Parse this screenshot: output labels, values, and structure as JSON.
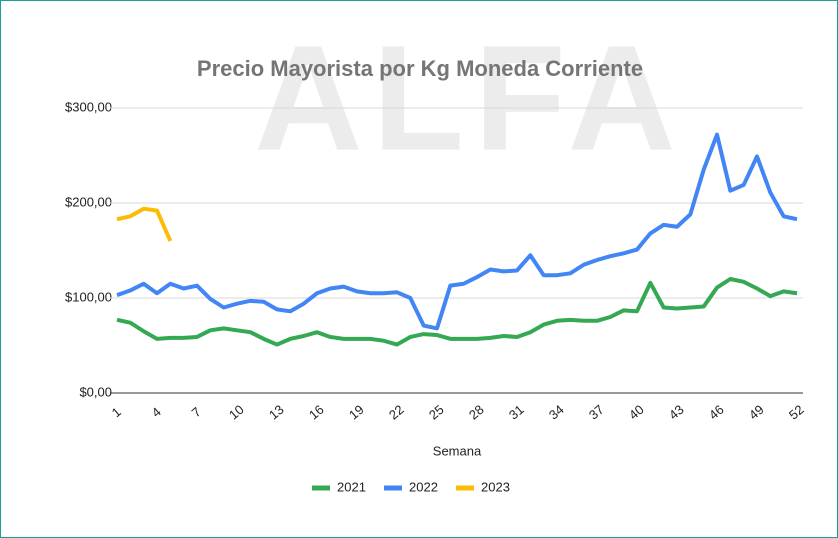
{
  "chart_data": {
    "type": "line",
    "title": "Precio Mayorista por Kg Moneda Corriente",
    "watermark": "ALFA",
    "x_label": "Semana",
    "x": [
      1,
      2,
      3,
      4,
      5,
      6,
      7,
      8,
      9,
      10,
      11,
      12,
      13,
      14,
      15,
      16,
      17,
      18,
      19,
      20,
      21,
      22,
      23,
      24,
      25,
      26,
      27,
      28,
      29,
      30,
      31,
      32,
      33,
      34,
      35,
      36,
      37,
      38,
      39,
      40,
      41,
      42,
      43,
      44,
      45,
      46,
      47,
      48,
      49,
      50,
      51,
      52
    ],
    "xlim": [
      1,
      52
    ],
    "xticks": [
      1,
      4,
      7,
      10,
      13,
      16,
      19,
      22,
      25,
      28,
      31,
      34,
      37,
      40,
      43,
      46,
      49,
      52
    ],
    "ylim": [
      0,
      300
    ],
    "yticks": [
      {
        "value": 0,
        "label": "$0,00"
      },
      {
        "value": 100,
        "label": "$100,00"
      },
      {
        "value": 200,
        "label": "$200,00"
      },
      {
        "value": 300,
        "label": "$300,00"
      }
    ],
    "grid": true,
    "legend": "bottom",
    "series": [
      {
        "name": "2021",
        "color": "#34a853",
        "values": [
          77,
          74,
          65,
          57,
          58,
          58,
          59,
          66,
          68,
          66,
          64,
          57,
          51,
          57,
          60,
          64,
          59,
          57,
          57,
          57,
          55,
          51,
          59,
          62,
          61,
          57,
          57,
          57,
          58,
          60,
          59,
          64,
          72,
          76,
          77,
          76,
          76,
          80,
          87,
          86,
          116,
          90,
          89,
          90,
          91,
          111,
          120,
          117,
          110,
          102,
          107,
          105
        ]
      },
      {
        "name": "2022",
        "color": "#4285f4",
        "values": [
          103,
          108,
          115,
          105,
          115,
          110,
          113,
          99,
          90,
          94,
          97,
          96,
          88,
          86,
          94,
          105,
          110,
          112,
          107,
          105,
          105,
          106,
          100,
          71,
          68,
          113,
          115,
          122,
          130,
          128,
          129,
          145,
          124,
          124,
          126,
          135,
          140,
          144,
          147,
          151,
          168,
          177,
          175,
          188,
          235,
          272,
          213,
          219,
          249,
          211,
          186,
          183
        ]
      },
      {
        "name": "2023",
        "color": "#fbbc04",
        "values": [
          183,
          186,
          194,
          192,
          160,
          null,
          null,
          null,
          null,
          null,
          null,
          null,
          null,
          null,
          null,
          null,
          null,
          null,
          null,
          null,
          null,
          null,
          null,
          null,
          null,
          null,
          null,
          null,
          null,
          null,
          null,
          null,
          null,
          null,
          null,
          null,
          null,
          null,
          null,
          null,
          null,
          null,
          null,
          null,
          null,
          null,
          null,
          null,
          null,
          null,
          null,
          null
        ]
      }
    ]
  }
}
